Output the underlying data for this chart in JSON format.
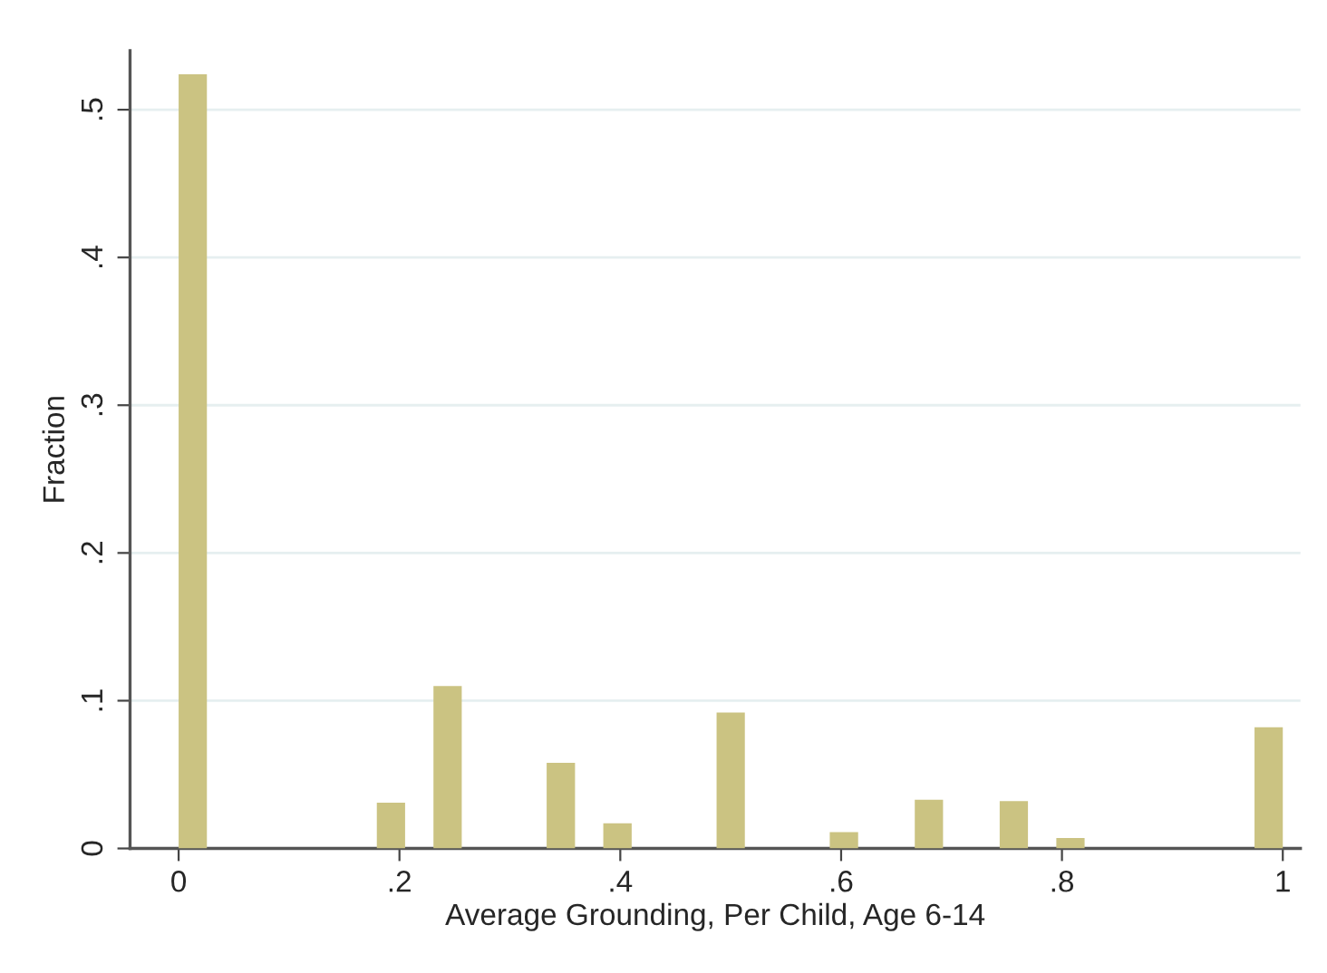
{
  "chart_data": {
    "type": "histogram",
    "xlabel": "Average Grounding, Per Child, Age 6-14",
    "ylabel": "Fraction",
    "bins": [
      0,
      0.0256,
      0.0513,
      0.0769,
      0.1026,
      0.1282,
      0.1538,
      0.1795,
      0.2051,
      0.2308,
      0.2564,
      0.2821,
      0.3077,
      0.3333,
      0.359,
      0.3846,
      0.4103,
      0.4359,
      0.4615,
      0.4872,
      0.5128,
      0.5385,
      0.5641,
      0.5897,
      0.6154,
      0.641,
      0.6667,
      0.6923,
      0.7179,
      0.7436,
      0.7692,
      0.7949,
      0.8205,
      0.8462,
      0.8718,
      0.8974,
      0.9231,
      0.9487,
      0.9744,
      1
    ],
    "values": [
      0.524,
      0,
      0,
      0,
      0,
      0,
      0,
      0.031,
      0,
      0.11,
      0,
      0,
      0,
      0.058,
      0,
      0.017,
      0,
      0,
      0,
      0.092,
      0,
      0,
      0,
      0.011,
      0,
      0,
      0.033,
      0,
      0,
      0.032,
      0,
      0.007,
      0,
      0,
      0,
      0,
      0,
      0,
      0.082
    ],
    "color": "#cbc382",
    "xlim": [
      -0.044,
      1.016
    ],
    "ylim": [
      0,
      0.54
    ],
    "xticks": [
      0,
      {
        "value": 0.2,
        "label": ".2"
      },
      {
        "value": 0.4,
        "label": ".4"
      },
      {
        "value": 0.6,
        "label": ".6"
      },
      {
        "value": 0.8,
        "label": ".8"
      },
      1
    ],
    "yticks": [
      0,
      {
        "value": 0.1,
        "label": ".1"
      },
      {
        "value": 0.2,
        "label": ".2"
      },
      {
        "value": 0.3,
        "label": ".3"
      },
      {
        "value": 0.4,
        "label": ".4"
      },
      {
        "value": 0.5,
        "label": ".5"
      }
    ],
    "grid": "y"
  }
}
